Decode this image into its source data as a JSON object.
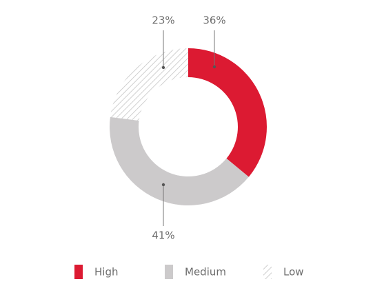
{
  "chart_data": {
    "type": "donut",
    "categories": [
      "High",
      "Medium",
      "Low"
    ],
    "values": [
      36,
      41,
      23
    ],
    "value_labels": [
      "36%",
      "41%",
      "23%"
    ],
    "colors": [
      "#dc1a32",
      "#cccacb",
      "#c4c4c4"
    ],
    "hatched": [
      false,
      false,
      true
    ]
  }
}
